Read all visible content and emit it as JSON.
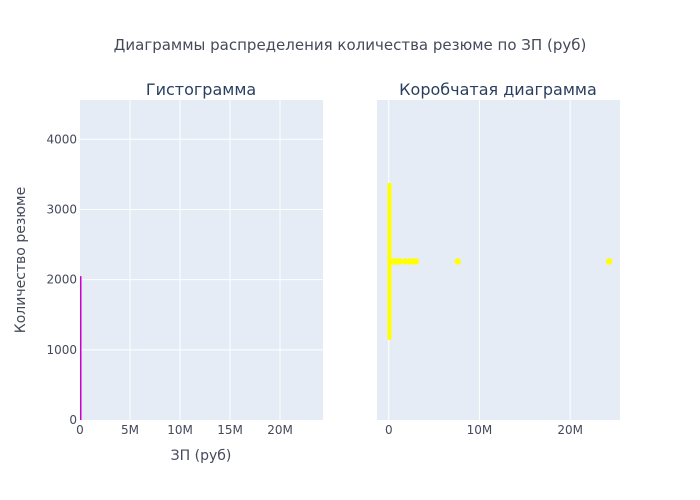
{
  "chart_data": {
    "title": "Диаграммы распределения количества резюме по ЗП (руб)",
    "colors": {
      "histogram": "#cc00cc",
      "box": "#ffff00",
      "plot_bg": "#e5ecf6",
      "grid": "#ffffff"
    },
    "histogram": {
      "type": "bar",
      "subtitle": "Гистограмма",
      "xlabel": "ЗП (руб)",
      "ylabel": "Количество резюме",
      "xlim": [
        0,
        24300000
      ],
      "ylim": [
        0,
        4560
      ],
      "x_ticks": [
        0,
        5000000,
        10000000,
        15000000,
        20000000
      ],
      "x_tick_labels": [
        "0",
        "5M",
        "10M",
        "15M",
        "20M"
      ],
      "y_ticks": [
        0,
        1000,
        2000,
        3000,
        4000
      ],
      "y_tick_labels": [
        "0",
        "1000",
        "2000",
        "3000",
        "4000"
      ],
      "bins": [
        {
          "x0": 0,
          "x1": 50000,
          "count": 2050
        }
      ]
    },
    "box": {
      "type": "box",
      "subtitle": "Коробчатая диаграмма",
      "orientation": "horizontal",
      "xlim": [
        -1300000,
        25500000
      ],
      "x_ticks": [
        0,
        10000000,
        20000000
      ],
      "x_tick_labels": [
        "0",
        "10M",
        "20M"
      ],
      "y_span": [
        1150,
        3370
      ],
      "center": 2260,
      "q1": 20000,
      "median": 45000,
      "q3": 85000,
      "whisker_low": 0,
      "whisker_high": 200000,
      "outliers": [
        300000,
        600000,
        800000,
        1000000,
        1200000,
        1800000,
        2300000,
        2700000,
        3000000,
        7600000,
        24300000
      ]
    }
  }
}
